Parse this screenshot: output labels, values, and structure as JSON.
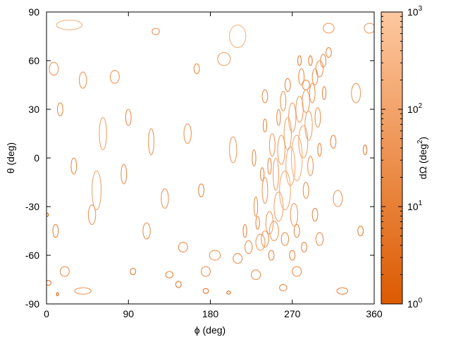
{
  "chart_data": {
    "type": "scatter",
    "marker": "ellipse",
    "xlabel": "ϕ (deg)",
    "ylabel": "θ (deg)",
    "xlim": [
      0,
      360
    ],
    "ylim": [
      -90,
      90
    ],
    "xticks": [
      0,
      90,
      180,
      270,
      360
    ],
    "yticks": [
      -90,
      -60,
      -30,
      0,
      30,
      60,
      90
    ],
    "xtick_labels": [
      "0",
      "90",
      "180",
      "270",
      "360"
    ],
    "ytick_labels": [
      "-90",
      "-60",
      "-30",
      "0",
      "30",
      "60",
      "90"
    ],
    "grid": false,
    "colorbar": {
      "label_main": "dΩ (deg",
      "label_sup": "2",
      "label_end": ")",
      "scale": "log",
      "range": [
        1,
        1000
      ],
      "ticks": [
        {
          "base": "10",
          "exp": "0",
          "value": 1
        },
        {
          "base": "10",
          "exp": "1",
          "value": 10
        },
        {
          "base": "10",
          "exp": "2",
          "value": 100
        },
        {
          "base": "10",
          "exp": "3",
          "value": 1000
        }
      ],
      "color_low": "#dc5a00",
      "color_high": "#fdc8a0"
    },
    "points": [
      {
        "phi": 25,
        "theta": 82,
        "dphi": 14,
        "dtheta": 3,
        "dOmega": 200
      },
      {
        "phi": 120,
        "theta": 78,
        "dphi": 4,
        "dtheta": 2,
        "dOmega": 30
      },
      {
        "phi": 210,
        "theta": 75,
        "dphi": 9,
        "dtheta": 7,
        "dOmega": 300
      },
      {
        "phi": 310,
        "theta": 80,
        "dphi": 6,
        "dtheta": 3,
        "dOmega": 60
      },
      {
        "phi": 355,
        "theta": 80,
        "dphi": 6,
        "dtheta": 3,
        "dOmega": 60
      },
      {
        "phi": 8,
        "theta": 55,
        "dphi": 5,
        "dtheta": 4,
        "dOmega": 40
      },
      {
        "phi": 40,
        "theta": 48,
        "dphi": 4,
        "dtheta": 5,
        "dOmega": 40
      },
      {
        "phi": 75,
        "theta": 50,
        "dphi": 5,
        "dtheta": 4,
        "dOmega": 40
      },
      {
        "phi": 165,
        "theta": 55,
        "dphi": 3,
        "dtheta": 3,
        "dOmega": 20
      },
      {
        "phi": 195,
        "theta": 61,
        "dphi": 7,
        "dtheta": 4,
        "dOmega": 80
      },
      {
        "phi": 240,
        "theta": 38,
        "dphi": 3,
        "dtheta": 4,
        "dOmega": 25
      },
      {
        "phi": 285,
        "theta": 45,
        "dphi": 4,
        "dtheta": 3,
        "dOmega": 25
      },
      {
        "phi": 340,
        "theta": 40,
        "dphi": 5,
        "dtheta": 6,
        "dOmega": 60
      },
      {
        "phi": 15,
        "theta": 30,
        "dphi": 3,
        "dtheta": 4,
        "dOmega": 20
      },
      {
        "phi": 62,
        "theta": 15,
        "dphi": 4,
        "dtheta": 10,
        "dOmega": 80
      },
      {
        "phi": 90,
        "theta": 25,
        "dphi": 3,
        "dtheta": 5,
        "dOmega": 20
      },
      {
        "phi": 115,
        "theta": 10,
        "dphi": 3,
        "dtheta": 8,
        "dOmega": 40
      },
      {
        "phi": 155,
        "theta": 15,
        "dphi": 4,
        "dtheta": 6,
        "dOmega": 40
      },
      {
        "phi": 205,
        "theta": 5,
        "dphi": 4,
        "dtheta": 8,
        "dOmega": 60
      },
      {
        "phi": 315,
        "theta": 10,
        "dphi": 3,
        "dtheta": 4,
        "dOmega": 20
      },
      {
        "phi": 350,
        "theta": 5,
        "dphi": 2,
        "dtheta": 3,
        "dOmega": 8
      },
      {
        "phi": 30,
        "theta": -5,
        "dphi": 3,
        "dtheta": 5,
        "dOmega": 20
      },
      {
        "phi": 55,
        "theta": -20,
        "dphi": 5,
        "dtheta": 12,
        "dOmega": 120
      },
      {
        "phi": 85,
        "theta": -10,
        "dphi": 3,
        "dtheta": 6,
        "dOmega": 25
      },
      {
        "phi": 130,
        "theta": -25,
        "dphi": 4,
        "dtheta": 6,
        "dOmega": 40
      },
      {
        "phi": 170,
        "theta": -20,
        "dphi": 3,
        "dtheta": 4,
        "dOmega": 20
      },
      {
        "phi": 320,
        "theta": -25,
        "dphi": 5,
        "dtheta": 5,
        "dOmega": 40
      },
      {
        "phi": 10,
        "theta": -45,
        "dphi": 3,
        "dtheta": 4,
        "dOmega": 15
      },
      {
        "phi": 50,
        "theta": -35,
        "dphi": 4,
        "dtheta": 6,
        "dOmega": 40
      },
      {
        "phi": 110,
        "theta": -45,
        "dphi": 4,
        "dtheta": 5,
        "dOmega": 30
      },
      {
        "phi": 150,
        "theta": -55,
        "dphi": 5,
        "dtheta": 3,
        "dOmega": 30
      },
      {
        "phi": 185,
        "theta": -60,
        "dphi": 6,
        "dtheta": 3,
        "dOmega": 40
      },
      {
        "phi": 210,
        "theta": -62,
        "dphi": 5,
        "dtheta": 3,
        "dOmega": 30
      },
      {
        "phi": 240,
        "theta": -50,
        "dphi": 4,
        "dtheta": 5,
        "dOmega": 40
      },
      {
        "phi": 300,
        "theta": -50,
        "dphi": 4,
        "dtheta": 4,
        "dOmega": 30
      },
      {
        "phi": 345,
        "theta": -45,
        "dphi": 3,
        "dtheta": 3,
        "dOmega": 10
      },
      {
        "phi": 20,
        "theta": -70,
        "dphi": 5,
        "dtheta": 3,
        "dOmega": 30
      },
      {
        "phi": 95,
        "theta": -70,
        "dphi": 3,
        "dtheta": 2,
        "dOmega": 10
      },
      {
        "phi": 135,
        "theta": -72,
        "dphi": 4,
        "dtheta": 2,
        "dOmega": 15
      },
      {
        "phi": 175,
        "theta": -70,
        "dphi": 5,
        "dtheta": 3,
        "dOmega": 30
      },
      {
        "phi": 230,
        "theta": -72,
        "dphi": 5,
        "dtheta": 3,
        "dOmega": 30
      },
      {
        "phi": 275,
        "theta": -70,
        "dphi": 5,
        "dtheta": 3,
        "dOmega": 30
      },
      {
        "phi": 40,
        "theta": -82,
        "dphi": 9,
        "dtheta": 2,
        "dOmega": 40
      },
      {
        "phi": 145,
        "theta": -78,
        "dphi": 3,
        "dtheta": 2,
        "dOmega": 8
      },
      {
        "phi": 175,
        "theta": -82,
        "dphi": 3,
        "dtheta": 1.5,
        "dOmega": 5
      },
      {
        "phi": 260,
        "theta": -80,
        "dphi": 4,
        "dtheta": 2,
        "dOmega": 15
      },
      {
        "phi": 325,
        "theta": -82,
        "dphi": 6,
        "dtheta": 2,
        "dOmega": 20
      },
      {
        "phi": 2,
        "theta": -77,
        "dphi": 3,
        "dtheta": 1.5,
        "dOmega": 5
      },
      {
        "phi": 200,
        "theta": -83,
        "dphi": 2,
        "dtheta": 1,
        "dOmega": 2
      },
      {
        "phi": 1,
        "theta": -35,
        "dphi": 1,
        "dtheta": 1,
        "dOmega": 1
      },
      {
        "phi": 12,
        "theta": -84,
        "dphi": 1,
        "dtheta": 1,
        "dOmega": 1
      },
      {
        "phi": 230,
        "theta": -30,
        "dphi": 2,
        "dtheta": 6,
        "dOmega": 30
      },
      {
        "phi": 240,
        "theta": -20,
        "dphi": 3,
        "dtheta": 8,
        "dOmega": 50
      },
      {
        "phi": 245,
        "theta": -40,
        "dphi": 4,
        "dtheta": 7,
        "dOmega": 60
      },
      {
        "phi": 252,
        "theta": -10,
        "dphi": 3,
        "dtheta": 10,
        "dOmega": 80
      },
      {
        "phi": 255,
        "theta": -30,
        "dphi": 5,
        "dtheta": 9,
        "dOmega": 100
      },
      {
        "phi": 258,
        "theta": 5,
        "dphi": 4,
        "dtheta": 9,
        "dOmega": 80
      },
      {
        "phi": 262,
        "theta": -20,
        "dphi": 6,
        "dtheta": 12,
        "dOmega": 150
      },
      {
        "phi": 265,
        "theta": 15,
        "dphi": 4,
        "dtheta": 10,
        "dOmega": 90
      },
      {
        "phi": 268,
        "theta": -5,
        "dphi": 5,
        "dtheta": 12,
        "dOmega": 150
      },
      {
        "phi": 270,
        "theta": 25,
        "dphi": 4,
        "dtheta": 9,
        "dOmega": 80
      },
      {
        "phi": 275,
        "theta": 0,
        "dphi": 6,
        "dtheta": 14,
        "dOmega": 200
      },
      {
        "phi": 278,
        "theta": 30,
        "dphi": 4,
        "dtheta": 8,
        "dOmega": 60
      },
      {
        "phi": 282,
        "theta": 10,
        "dphi": 5,
        "dtheta": 10,
        "dOmega": 100
      },
      {
        "phi": 285,
        "theta": 35,
        "dphi": 4,
        "dtheta": 7,
        "dOmega": 60
      },
      {
        "phi": 288,
        "theta": 20,
        "dphi": 4,
        "dtheta": 9,
        "dOmega": 80
      },
      {
        "phi": 292,
        "theta": 40,
        "dphi": 3,
        "dtheta": 6,
        "dOmega": 40
      },
      {
        "phi": 295,
        "theta": 50,
        "dphi": 3,
        "dtheta": 5,
        "dOmega": 30
      },
      {
        "phi": 300,
        "theta": 55,
        "dphi": 4,
        "dtheta": 5,
        "dOmega": 40
      },
      {
        "phi": 304,
        "theta": 60,
        "dphi": 3,
        "dtheta": 4,
        "dOmega": 25
      },
      {
        "phi": 250,
        "theta": -45,
        "dphi": 5,
        "dtheta": 6,
        "dOmega": 60
      },
      {
        "phi": 235,
        "theta": -52,
        "dphi": 5,
        "dtheta": 5,
        "dOmega": 50
      },
      {
        "phi": 222,
        "theta": -55,
        "dphi": 4,
        "dtheta": 4,
        "dOmega": 30
      },
      {
        "phi": 260,
        "theta": 35,
        "dphi": 3,
        "dtheta": 6,
        "dOmega": 40
      },
      {
        "phi": 290,
        "theta": -5,
        "dphi": 3,
        "dtheta": 6,
        "dOmega": 40
      },
      {
        "phi": 248,
        "theta": 8,
        "dphi": 3,
        "dtheta": 7,
        "dOmega": 50
      },
      {
        "phi": 272,
        "theta": -35,
        "dphi": 4,
        "dtheta": 7,
        "dOmega": 60
      },
      {
        "phi": 298,
        "theta": 25,
        "dphi": 3,
        "dtheta": 6,
        "dOmega": 35
      },
      {
        "phi": 265,
        "theta": 45,
        "dphi": 3,
        "dtheta": 4,
        "dOmega": 20
      },
      {
        "phi": 280,
        "theta": 50,
        "dphi": 3,
        "dtheta": 5,
        "dOmega": 25
      },
      {
        "phi": 245,
        "theta": -5,
        "dphi": 2,
        "dtheta": 5,
        "dOmega": 20
      },
      {
        "phi": 285,
        "theta": -20,
        "dphi": 3,
        "dtheta": 5,
        "dOmega": 25
      },
      {
        "phi": 262,
        "theta": -50,
        "dphi": 4,
        "dtheta": 4,
        "dOmega": 30
      },
      {
        "phi": 275,
        "theta": -45,
        "dphi": 3,
        "dtheta": 4,
        "dOmega": 20
      },
      {
        "phi": 310,
        "theta": 65,
        "dphi": 3,
        "dtheta": 3,
        "dOmega": 15
      },
      {
        "phi": 240,
        "theta": 20,
        "dphi": 2,
        "dtheta": 4,
        "dOmega": 15
      },
      {
        "phi": 270,
        "theta": -60,
        "dphi": 3,
        "dtheta": 3,
        "dOmega": 15
      },
      {
        "phi": 300,
        "theta": 5,
        "dphi": 2,
        "dtheta": 4,
        "dOmega": 15
      },
      {
        "phi": 290,
        "theta": 60,
        "dphi": 2,
        "dtheta": 3,
        "dOmega": 10
      },
      {
        "phi": 232,
        "theta": -40,
        "dphi": 2,
        "dtheta": 4,
        "dOmega": 15
      },
      {
        "phi": 305,
        "theta": 40,
        "dphi": 2,
        "dtheta": 4,
        "dOmega": 15
      },
      {
        "phi": 255,
        "theta": 25,
        "dphi": 2,
        "dtheta": 5,
        "dOmega": 20
      },
      {
        "phi": 237,
        "theta": -10,
        "dphi": 2,
        "dtheta": 4,
        "dOmega": 15
      },
      {
        "phi": 295,
        "theta": -35,
        "dphi": 3,
        "dtheta": 4,
        "dOmega": 20
      },
      {
        "phi": 278,
        "theta": 60,
        "dphi": 2,
        "dtheta": 3,
        "dOmega": 10
      },
      {
        "phi": 247,
        "theta": -60,
        "dphi": 3,
        "dtheta": 3,
        "dOmega": 15
      },
      {
        "phi": 283,
        "theta": -55,
        "dphi": 3,
        "dtheta": 3,
        "dOmega": 15
      },
      {
        "phi": 218,
        "theta": -45,
        "dphi": 2,
        "dtheta": 4,
        "dOmega": 15
      },
      {
        "phi": 228,
        "theta": 0,
        "dphi": 2,
        "dtheta": 5,
        "dOmega": 20
      }
    ]
  }
}
